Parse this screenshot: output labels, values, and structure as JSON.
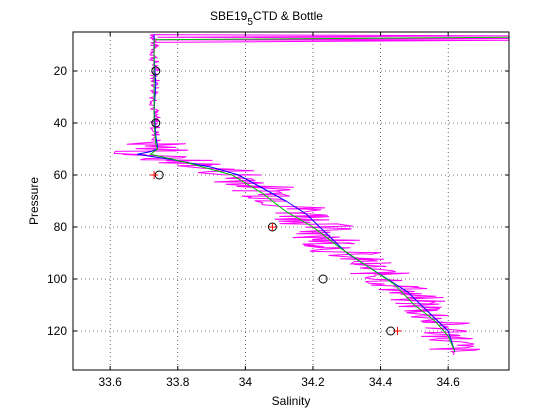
{
  "chart_data": {
    "type": "line",
    "title": "SBE19",
    "title_subscript": "5",
    "title_suffix": "CTD & Bottle",
    "xlabel": "Salinity",
    "ylabel": "Pressure",
    "xlim": [
      33.49,
      34.78
    ],
    "ylim": [
      135,
      5
    ],
    "y_reversed": true,
    "grid": true,
    "grid_style": "dotted",
    "x_ticks": [
      33.6,
      33.8,
      34,
      34.2,
      34.4,
      34.6
    ],
    "x_tick_labels": [
      "33.6",
      "33.8",
      "34",
      "34.2",
      "34.4",
      "34.6"
    ],
    "y_ticks": [
      20,
      40,
      60,
      80,
      100,
      120
    ],
    "y_tick_labels": [
      "20",
      "40",
      "60",
      "80",
      "100",
      "120"
    ],
    "colors": {
      "ctd_raw": "#ff00ff",
      "ctd_blue": "#0000ff",
      "ctd_green": "#00c000",
      "bottle_circle": "#000000",
      "bottle_plus": "#ff0000"
    },
    "series": [
      {
        "style": "line",
        "color": "#0000ff",
        "x": [
          33.73,
          33.73,
          33.735,
          33.73,
          33.735,
          33.74,
          33.74,
          33.72,
          33.68,
          33.78,
          33.9,
          33.98,
          34.05,
          34.12,
          34.18,
          34.22,
          34.26,
          34.3,
          34.36,
          34.42,
          34.48,
          34.52,
          34.56,
          34.6,
          34.62
        ],
        "y": [
          6,
          15,
          25,
          35,
          45,
          49,
          50,
          51,
          52,
          54,
          57,
          60,
          65,
          70,
          75,
          80,
          85,
          90,
          95,
          100,
          105,
          110,
          115,
          120,
          128
        ]
      },
      {
        "style": "line",
        "color": "#00c000",
        "x": [
          34.78,
          33.73,
          33.73,
          33.73,
          33.735,
          33.74,
          33.72,
          33.82,
          33.96,
          34.05,
          34.12,
          34.2,
          34.28,
          34.36,
          34.44,
          34.5,
          34.56,
          34.6,
          34.62
        ],
        "y": [
          7,
          8,
          20,
          40,
          48,
          50,
          52,
          55,
          60,
          67,
          74,
          80,
          88,
          95,
          102,
          110,
          116,
          122,
          128
        ]
      }
    ],
    "bottle_circles": [
      {
        "x": 33.735,
        "y": 20
      },
      {
        "x": 33.735,
        "y": 40
      },
      {
        "x": 33.745,
        "y": 60
      },
      {
        "x": 34.08,
        "y": 80
      },
      {
        "x": 34.23,
        "y": 100
      },
      {
        "x": 34.43,
        "y": 120
      }
    ],
    "bottle_pluses": [
      {
        "x": 33.73,
        "y": 60
      },
      {
        "x": 34.08,
        "y": 80
      },
      {
        "x": 34.45,
        "y": 120
      }
    ]
  }
}
